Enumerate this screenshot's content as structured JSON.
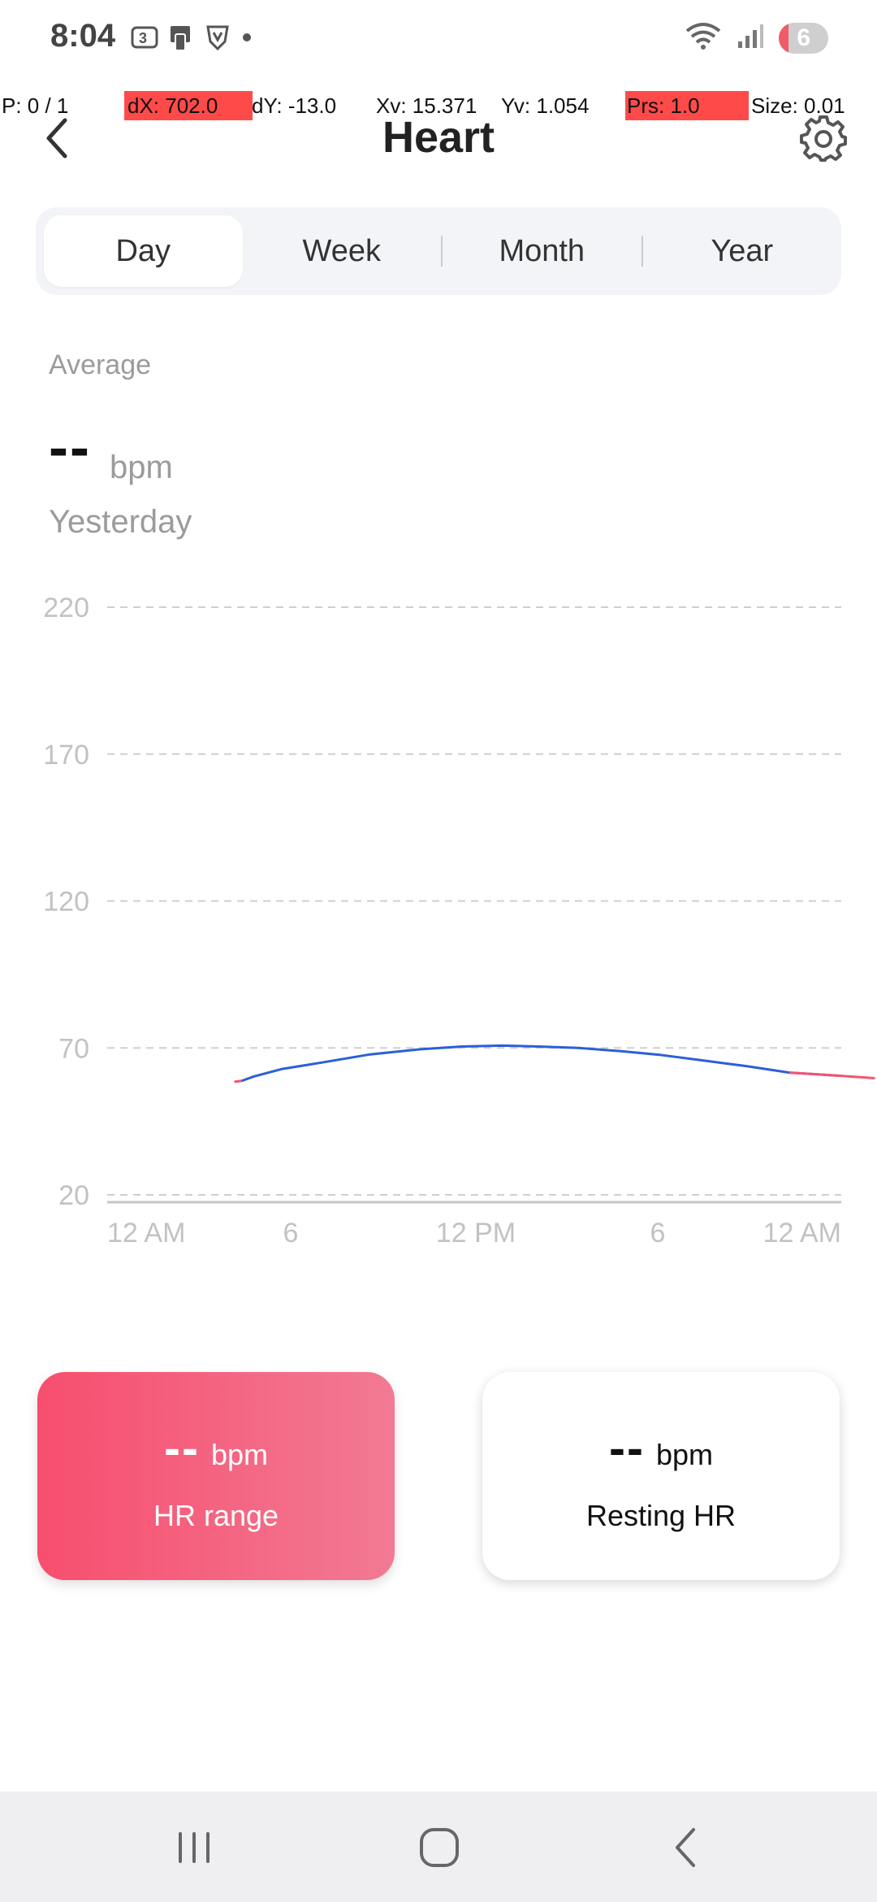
{
  "status_bar": {
    "time": "8:04",
    "left_icons": [
      "sim-3-icon",
      "phone-card-icon",
      "vpn-shield-icon",
      "dot-icon"
    ],
    "right_icons": [
      "wifi-icon",
      "signal-icon"
    ],
    "battery": "6"
  },
  "debug": {
    "pointer": "P: 0 / 1",
    "dx": "dX: 702.0",
    "dy": "dY: -13.0",
    "xv": "Xv: 15.371",
    "yv": "Yv: 1.054",
    "prs": "Prs: 1.0",
    "size": "Size: 0.01"
  },
  "header": {
    "title": "Heart"
  },
  "tabs": [
    {
      "label": "Day",
      "active": true
    },
    {
      "label": "Week",
      "active": false
    },
    {
      "label": "Month",
      "active": false
    },
    {
      "label": "Year",
      "active": false
    }
  ],
  "summary": {
    "average_label": "Average",
    "average_value": "--",
    "unit": "bpm",
    "date_label": "Yesterday"
  },
  "chart_data": {
    "type": "line",
    "y_ticks": [
      20,
      70,
      120,
      170,
      220
    ],
    "ylim": [
      20,
      220
    ],
    "x_ticks": [
      "12 AM",
      "6",
      "12 PM",
      "6",
      "12 AM"
    ],
    "xlim": [
      0,
      24
    ],
    "grid": true,
    "colors": {
      "line": "#2b5fd9",
      "edge": "#f2556f",
      "grid": "#cfcfcf",
      "axis": "#c6c6c6",
      "tick_label": "#c2c2c2"
    },
    "series": [
      {
        "name": "",
        "x": [
          4.4,
          4.8,
          5.7,
          7.0,
          8.6,
          10.2,
          11.6,
          12.9,
          14.1,
          15.4,
          16.8,
          18.1,
          19.5,
          20.9,
          22.3,
          24.0,
          25.1
        ],
        "y": [
          58.8,
          60.3,
          62.8,
          65.0,
          67.8,
          69.5,
          70.5,
          70.8,
          70.5,
          70.0,
          68.9,
          67.6,
          65.7,
          63.8,
          61.6,
          60.5,
          59.7
        ]
      }
    ]
  },
  "cards": {
    "range": {
      "value": "--",
      "unit": "bpm",
      "label": "HR range"
    },
    "resting": {
      "value": "--",
      "unit": "bpm",
      "label": "Resting HR"
    }
  },
  "nav": [
    "recent-apps-icon",
    "home-icon",
    "back-icon"
  ]
}
